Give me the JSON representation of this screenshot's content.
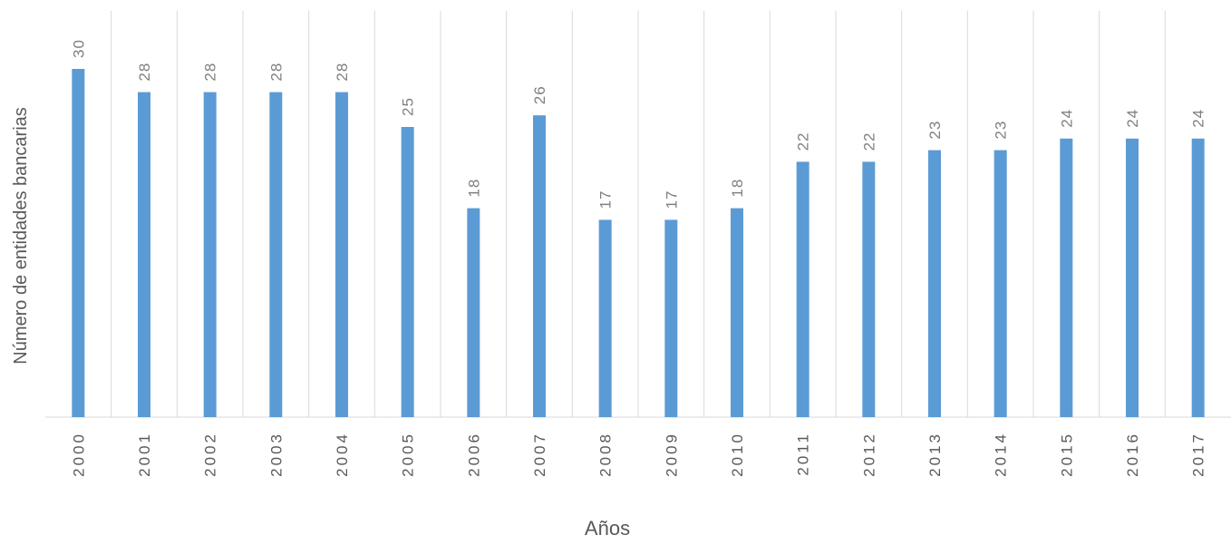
{
  "chart_data": {
    "type": "bar",
    "x_label": "Años",
    "y_label": "Número de entidades bancarias",
    "categories": [
      "2000",
      "2001",
      "2002",
      "2003",
      "2004",
      "2005",
      "2006",
      "2007",
      "2008",
      "2009",
      "2010",
      "2011",
      "2012",
      "2013",
      "2014",
      "2015",
      "2016",
      "2017"
    ],
    "values": [
      30,
      28,
      28,
      28,
      28,
      25,
      18,
      26,
      17,
      17,
      18,
      22,
      22,
      23,
      23,
      24,
      24,
      24
    ],
    "color": "#5b9bd5",
    "ylim": [
      0,
      35
    ],
    "grid": true
  }
}
